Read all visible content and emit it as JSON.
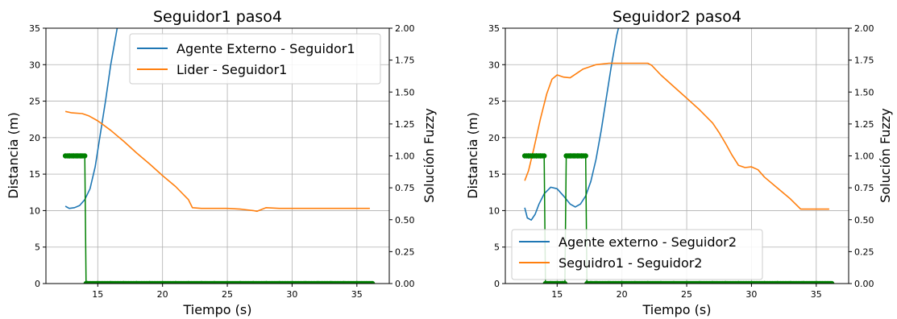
{
  "chart_data": [
    {
      "type": "line",
      "title": "Seguidor1 paso4",
      "xlabel": "Tiempo (s)",
      "ylabel": "Distancia (m)",
      "ylabel2": "Solución Fuzzy",
      "xlim": [
        11.0,
        37.5
      ],
      "ylim": [
        0,
        35
      ],
      "ylim2": [
        0,
        2.0
      ],
      "xticks": [
        15,
        20,
        25,
        30,
        35
      ],
      "yticks": [
        0,
        5,
        10,
        15,
        20,
        25,
        30,
        35
      ],
      "yticks2": [
        "0.00",
        "0.25",
        "0.50",
        "0.75",
        "1.00",
        "1.25",
        "1.50",
        "1.75",
        "2.00"
      ],
      "grid": true,
      "legend_position": "upper-right",
      "series": [
        {
          "name": "Agente Externo - Seguidor1",
          "color": "#1f77b4",
          "axis": "left",
          "x": [
            12.5,
            12.8,
            13.2,
            13.6,
            14.0,
            14.4,
            14.8,
            15.2,
            15.6,
            16.0,
            16.4,
            16.6,
            17.0
          ],
          "y": [
            10.6,
            10.3,
            10.4,
            10.7,
            11.5,
            13.0,
            16.0,
            20.5,
            25.0,
            30.0,
            34.0,
            36.0,
            40.0
          ]
        },
        {
          "name": "Lider - Seguidor1",
          "color": "#ff7f0e",
          "axis": "left",
          "x": [
            12.5,
            13.0,
            13.8,
            14.3,
            15.0,
            16.0,
            17.0,
            18.0,
            19.0,
            20.0,
            21.0,
            22.0,
            22.3,
            23.0,
            24.0,
            25.0,
            26.0,
            26.5,
            27.0,
            27.3,
            27.7,
            28.0,
            29.0,
            30.0,
            32.0,
            34.0,
            36.0
          ],
          "y": [
            23.6,
            23.4,
            23.3,
            23.0,
            22.3,
            21.0,
            19.5,
            17.9,
            16.4,
            14.8,
            13.3,
            11.5,
            10.4,
            10.3,
            10.3,
            10.3,
            10.2,
            10.1,
            10.0,
            9.9,
            10.2,
            10.4,
            10.3,
            10.3,
            10.3,
            10.3,
            10.3
          ]
        },
        {
          "name": "",
          "color": "#008000",
          "axis": "right",
          "style": "markers",
          "x": [
            12.5,
            12.8,
            13.1,
            13.4,
            13.7,
            14.0,
            14.1,
            14.2,
            15.0,
            16.0,
            17.0,
            18.0,
            19.0,
            20.0,
            21.0,
            22.0,
            23.0,
            24.0,
            25.0,
            26.0,
            27.0,
            28.0,
            29.0,
            30.0,
            31.0,
            32.0,
            33.0,
            34.0,
            35.0,
            36.2
          ],
          "y": [
            1,
            1,
            1,
            1,
            1,
            1,
            0,
            0,
            0,
            0,
            0,
            0,
            0,
            0,
            0,
            0,
            0,
            0,
            0,
            0,
            0,
            0,
            0,
            0,
            0,
            0,
            0,
            0,
            0,
            0
          ]
        }
      ]
    },
    {
      "type": "line",
      "title": "Seguidor2 paso4",
      "xlabel": "Tiempo (s)",
      "ylabel": "Distancia (m)",
      "ylabel2": "Solución Fuzzy",
      "xlim": [
        11.0,
        37.5
      ],
      "ylim": [
        0,
        35
      ],
      "ylim2": [
        0,
        2.0
      ],
      "xticks": [
        15,
        20,
        25,
        30,
        35
      ],
      "yticks": [
        0,
        5,
        10,
        15,
        20,
        25,
        30,
        35
      ],
      "yticks2": [
        "0.00",
        "0.25",
        "0.50",
        "0.75",
        "1.00",
        "1.25",
        "1.50",
        "1.75",
        "2.00"
      ],
      "grid": true,
      "legend_position": "lower-left",
      "series": [
        {
          "name": "Agente externo - Seguidor2",
          "color": "#1f77b4",
          "axis": "left",
          "x": [
            12.5,
            12.7,
            13.0,
            13.3,
            13.6,
            14.0,
            14.5,
            15.0,
            15.5,
            16.0,
            16.4,
            16.8,
            17.2,
            17.6,
            18.0,
            18.4,
            18.8,
            19.2,
            19.6,
            20.0
          ],
          "y": [
            10.4,
            9.0,
            8.7,
            9.5,
            10.9,
            12.3,
            13.2,
            13.0,
            12.0,
            10.9,
            10.5,
            10.9,
            12.0,
            14.0,
            17.0,
            21.0,
            25.5,
            30.0,
            34.0,
            37.0
          ]
        },
        {
          "name": "Seguidro1 - Seguidor2",
          "color": "#ff7f0e",
          "axis": "left",
          "x": [
            12.5,
            12.8,
            13.2,
            13.7,
            14.2,
            14.6,
            15.0,
            15.5,
            16.0,
            16.5,
            17.0,
            17.5,
            18.0,
            18.5,
            19.0,
            20.0,
            21.0,
            22.0,
            22.3,
            23.0,
            24.0,
            25.0,
            26.0,
            27.0,
            27.5,
            28.0,
            28.5,
            29.0,
            29.5,
            30.0,
            30.5,
            31.0,
            32.0,
            33.0,
            33.8,
            34.5,
            35.0,
            36.0
          ],
          "y": [
            14.1,
            15.5,
            18.5,
            22.5,
            26.0,
            28.0,
            28.6,
            28.3,
            28.2,
            28.8,
            29.4,
            29.7,
            30.0,
            30.1,
            30.2,
            30.2,
            30.2,
            30.2,
            29.9,
            28.6,
            27.0,
            25.4,
            23.8,
            22.0,
            20.7,
            19.2,
            17.6,
            16.2,
            15.9,
            16.0,
            15.6,
            14.6,
            13.1,
            11.6,
            10.2,
            10.2,
            10.2,
            10.2
          ]
        },
        {
          "name": "",
          "color": "#008000",
          "axis": "right",
          "style": "markers",
          "x": [
            12.5,
            12.8,
            13.1,
            13.4,
            13.7,
            14.0,
            14.1,
            14.5,
            15.0,
            15.4,
            15.6,
            15.7,
            16.0,
            16.3,
            16.6,
            16.9,
            17.2,
            17.3,
            17.6,
            18.0,
            19.0,
            20.0,
            21.0,
            22.0,
            23.0,
            24.0,
            25.0,
            26.0,
            27.0,
            28.0,
            29.0,
            30.0,
            31.0,
            32.0,
            33.0,
            34.0,
            35.0,
            36.2
          ],
          "y": [
            1,
            1,
            1,
            1,
            1,
            1,
            0,
            0,
            0,
            0,
            0,
            1,
            1,
            1,
            1,
            1,
            1,
            0,
            0,
            0,
            0,
            0,
            0,
            0,
            0,
            0,
            0,
            0,
            0,
            0,
            0,
            0,
            0,
            0,
            0,
            0,
            0,
            0
          ]
        }
      ]
    }
  ]
}
